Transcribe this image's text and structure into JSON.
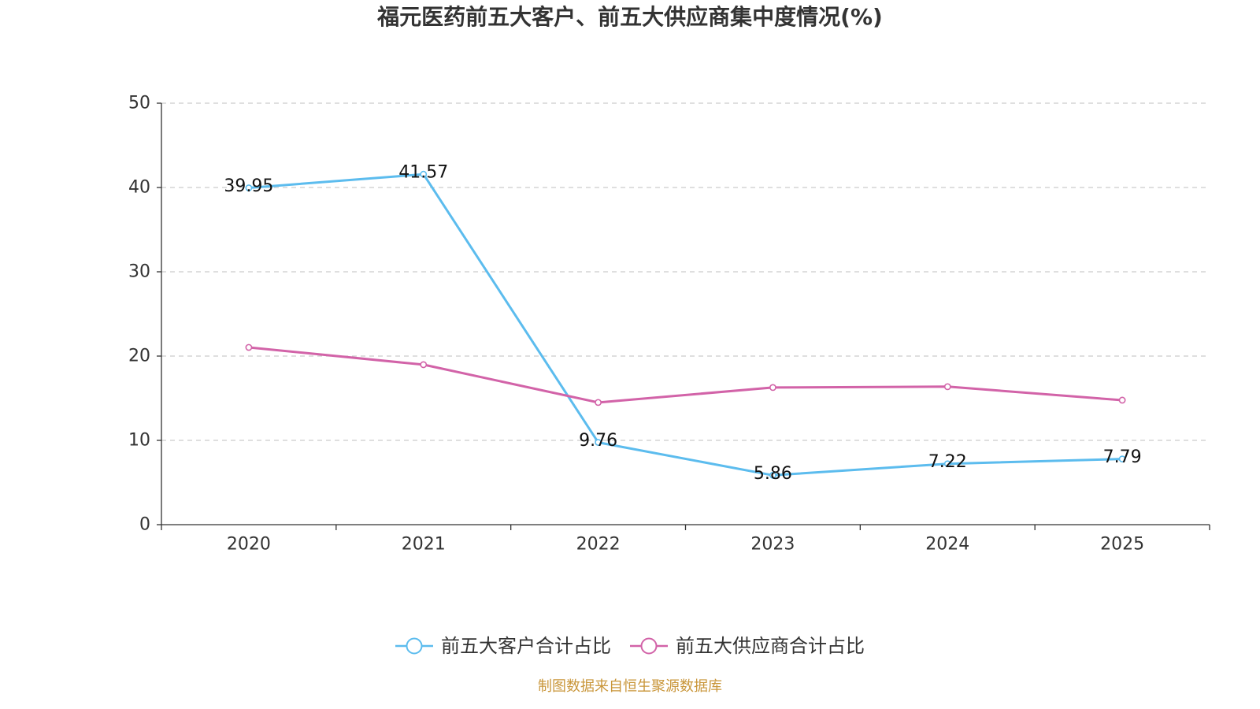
{
  "chart_data": {
    "type": "line",
    "title": "福元医药前五大客户、前五大供应商集中度情况(%)",
    "categories": [
      "2020",
      "2021",
      "2022",
      "2023",
      "2024",
      "2025"
    ],
    "series": [
      {
        "name": "前五大客户合计占比",
        "values": [
          39.95,
          41.57,
          9.76,
          5.86,
          7.22,
          7.79
        ],
        "color": "#5cbcee",
        "show_labels": true
      },
      {
        "name": "前五大供应商合计占比",
        "values": [
          21.03,
          18.98,
          14.5,
          16.27,
          16.37,
          14.77
        ],
        "color": "#d263a8",
        "show_labels": false
      }
    ],
    "xlabel": "",
    "ylabel": "",
    "ylim": [
      0,
      50
    ],
    "yticks": [
      0,
      10,
      20,
      30,
      40,
      50
    ],
    "grid": true,
    "legend": "bottom"
  },
  "footer": {
    "source": "制图数据来自恒生聚源数据库"
  }
}
